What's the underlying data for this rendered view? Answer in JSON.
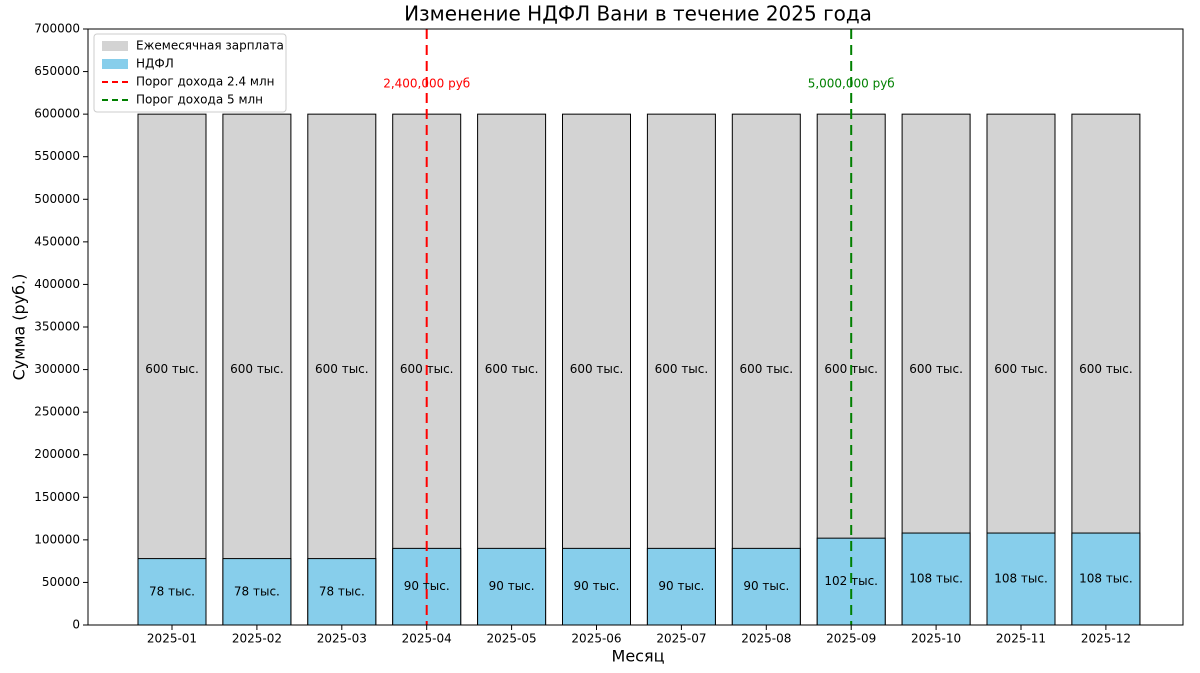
{
  "chart_data": {
    "type": "bar",
    "title": "Изменение НДФЛ Вани в течение 2025 года",
    "xlabel": "Месяц",
    "ylabel": "Сумма (руб.)",
    "categories": [
      "2025-01",
      "2025-02",
      "2025-03",
      "2025-04",
      "2025-05",
      "2025-06",
      "2025-07",
      "2025-08",
      "2025-09",
      "2025-10",
      "2025-11",
      "2025-12"
    ],
    "series": [
      {
        "name": "Ежемесячная зарплата",
        "color": "#d3d3d3",
        "values": [
          600000,
          600000,
          600000,
          600000,
          600000,
          600000,
          600000,
          600000,
          600000,
          600000,
          600000,
          600000
        ],
        "value_labels": [
          "600 тыс.",
          "600 тыс.",
          "600 тыс.",
          "600 тыс.",
          "600 тыс.",
          "600 тыс.",
          "600 тыс.",
          "600 тыс.",
          "600 тыс.",
          "600 тыс.",
          "600 тыс.",
          "600 тыс."
        ]
      },
      {
        "name": "НДФЛ",
        "color": "#87ceeb",
        "values": [
          78000,
          78000,
          78000,
          90000,
          90000,
          90000,
          90000,
          90000,
          102000,
          108000,
          108000,
          108000
        ],
        "value_labels": [
          "78 тыс.",
          "78 тыс.",
          "78 тыс.",
          "90 тыс.",
          "90 тыс.",
          "90 тыс.",
          "90 тыс.",
          "90 тыс.",
          "102 тыс.",
          "108 тыс.",
          "108 тыс.",
          "108 тыс."
        ]
      }
    ],
    "vlines": [
      {
        "name": "Порог дохода 2.4 млн",
        "color": "#ff0000",
        "at": "2025-04",
        "label": "2,400,000 руб"
      },
      {
        "name": "Порог дохода 5 млн",
        "color": "#008000",
        "at": "2025-09",
        "label": "5,000,000 руб"
      }
    ],
    "ylim": [
      0,
      700000
    ],
    "yticks": [
      0,
      50000,
      100000,
      150000,
      200000,
      250000,
      300000,
      350000,
      400000,
      450000,
      500000,
      550000,
      600000,
      650000,
      700000
    ],
    "legend": "upper left"
  }
}
